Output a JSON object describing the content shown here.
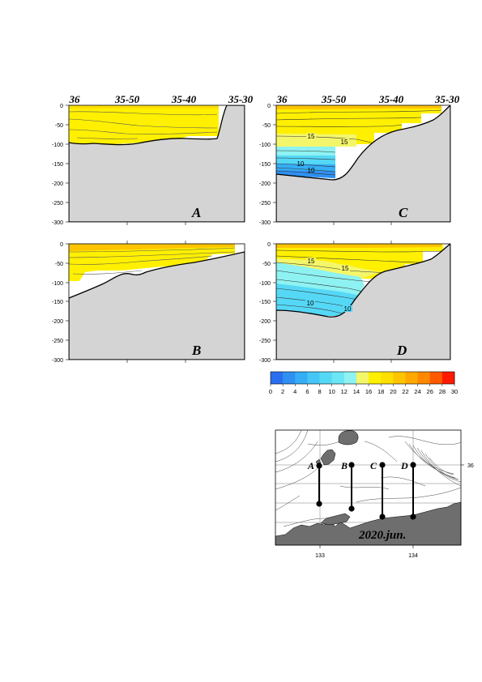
{
  "chart_data": [
    {
      "type": "heatmap",
      "panel": "A",
      "x_ticks": [
        "36",
        "35-50",
        "35-40",
        "35-30"
      ],
      "y_ticks": [
        "0",
        "-50",
        "-100",
        "-150",
        "-200",
        "-250",
        "-300"
      ],
      "ylim": [
        -300,
        0
      ],
      "isotherm_labels": [],
      "temperature_range": [
        16,
        20
      ]
    },
    {
      "type": "heatmap",
      "panel": "B",
      "x_ticks": [],
      "y_ticks": [
        "0",
        "-50",
        "-100",
        "-150",
        "-200",
        "-250",
        "-300"
      ],
      "ylim": [
        -300,
        0
      ],
      "isotherm_labels": [],
      "temperature_range": [
        16,
        22
      ]
    },
    {
      "type": "heatmap",
      "panel": "C",
      "x_ticks": [
        "36",
        "35-50",
        "35-40",
        "35-30"
      ],
      "y_ticks": [
        "0",
        "-50",
        "-100",
        "-150",
        "-200",
        "-250",
        "-300"
      ],
      "ylim": [
        -300,
        0
      ],
      "isotherm_labels": [
        "15",
        "15",
        "10",
        "10"
      ],
      "temperature_range": [
        6,
        20
      ]
    },
    {
      "type": "heatmap",
      "panel": "D",
      "x_ticks": [],
      "y_ticks": [
        "0",
        "-50",
        "-100",
        "-150",
        "-200",
        "-250",
        "-300"
      ],
      "ylim": [
        -300,
        0
      ],
      "isotherm_labels": [
        "15",
        "15",
        "10",
        "10"
      ],
      "temperature_range": [
        8,
        20
      ]
    }
  ],
  "colorbar": {
    "ticks": [
      "0",
      "2",
      "4",
      "6",
      "8",
      "10",
      "12",
      "14",
      "16",
      "18",
      "20",
      "22",
      "24",
      "26",
      "28",
      "30"
    ],
    "colors": [
      "#2a6ef0",
      "#2f90f2",
      "#35aef5",
      "#45c6f7",
      "#55d8f6",
      "#6ae6f4",
      "#8ef2f2",
      "#f4f66a",
      "#fff000",
      "#ffdf00",
      "#ffc400",
      "#ffa800",
      "#ff8800",
      "#ff5a00",
      "#ff1a00"
    ]
  },
  "map": {
    "transect_labels": [
      "A",
      "B",
      "C",
      "D"
    ],
    "lon_ticks": [
      "133",
      "134"
    ],
    "lat_tick": "36",
    "date_stamp": "2020.jun."
  },
  "colors": {
    "seabed": "#d4d4d4",
    "land": "#6e6e6e"
  }
}
